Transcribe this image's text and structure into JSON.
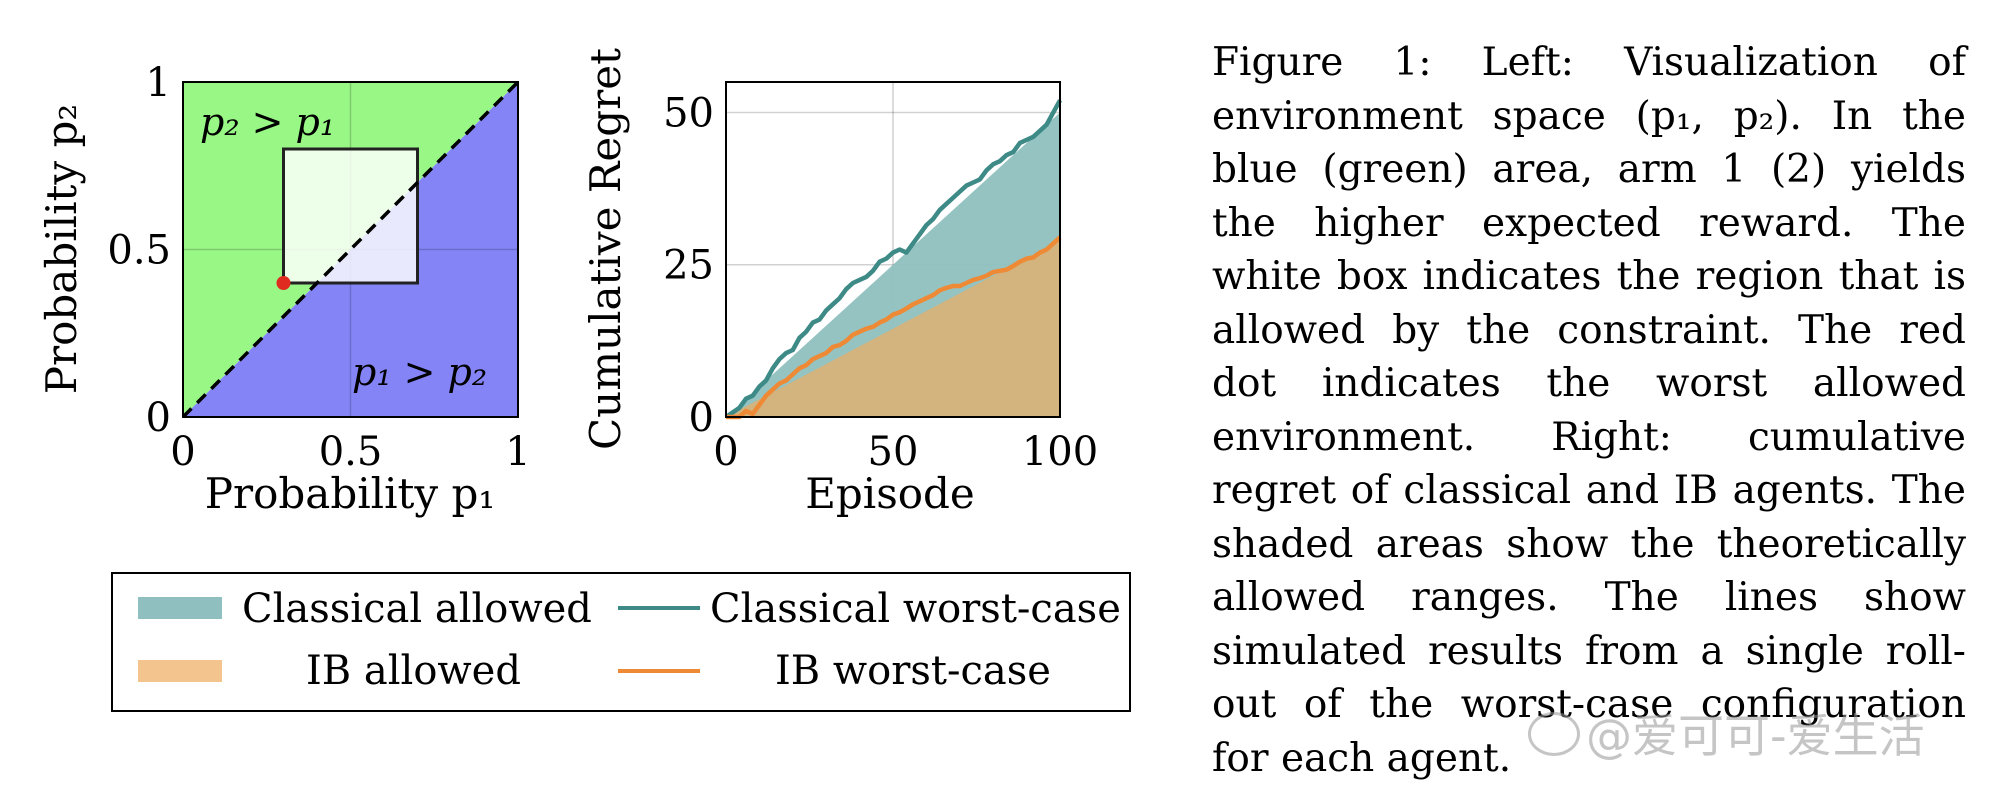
{
  "chart_data": [
    {
      "type": "area",
      "xlabel": "Probability p₁",
      "ylabel": "Probability p₂",
      "xlim": [
        0,
        1
      ],
      "ylim": [
        0,
        1
      ],
      "xticks": [
        "0",
        "0.5",
        "1"
      ],
      "yticks": [
        "0",
        "0.5",
        "1"
      ],
      "grid": true,
      "regions": [
        {
          "label": "p₂ > p₁",
          "color": "#99f785"
        },
        {
          "label": "p₁ > p₂",
          "color": "#8484f7"
        }
      ],
      "diagonal": {
        "from": [
          0,
          0
        ],
        "to": [
          1,
          1
        ],
        "style": "dashed"
      },
      "constraint_box": {
        "x": [
          0.3,
          0.7
        ],
        "y": [
          0.4,
          0.8
        ]
      },
      "red_dot": {
        "x": 0.3,
        "y": 0.4
      }
    },
    {
      "type": "line",
      "xlabel": "Episode",
      "ylabel": "Cumulative Regret",
      "xlim": [
        0,
        100
      ],
      "ylim": [
        0,
        55
      ],
      "xticks": [
        "0",
        "50",
        "100"
      ],
      "yticks": [
        "0",
        "25",
        "50"
      ],
      "grid": true,
      "areas": [
        {
          "name": "Classical allowed",
          "color": "#8fc0bf",
          "lower": [
            [
              0,
              0
            ],
            [
              100,
              0
            ]
          ],
          "upper": [
            [
              0,
              0
            ],
            [
              100,
              50
            ]
          ]
        },
        {
          "name": "IB allowed",
          "color": "#d6b27a",
          "lower": [
            [
              0,
              0
            ],
            [
              100,
              0
            ]
          ],
          "upper": [
            [
              0,
              0
            ],
            [
              100,
              29
            ]
          ]
        }
      ],
      "series": [
        {
          "name": "Classical worst-case",
          "color": "#3d8a87",
          "x": [
            0,
            4,
            6,
            8,
            10,
            12,
            14,
            16,
            18,
            20,
            22,
            24,
            26,
            28,
            30,
            32,
            34,
            36,
            38,
            40,
            42,
            44,
            46,
            48,
            50,
            52,
            54,
            56,
            58,
            60,
            62,
            64,
            66,
            68,
            70,
            72,
            74,
            76,
            78,
            80,
            82,
            84,
            86,
            88,
            90,
            92,
            94,
            96,
            98,
            100
          ],
          "y": [
            0,
            1.5,
            3,
            3.5,
            5,
            6,
            8,
            9.5,
            10.5,
            11,
            13,
            14,
            15.5,
            16,
            17.5,
            18.5,
            19.5,
            21,
            22,
            22.5,
            23,
            24,
            25.5,
            26,
            27,
            27.5,
            27,
            28.5,
            30,
            31.5,
            32.5,
            34,
            35,
            36,
            37,
            38,
            38.5,
            39,
            40.5,
            41.5,
            42,
            43,
            43.5,
            45,
            45.5,
            46,
            47,
            48,
            50,
            52
          ]
        },
        {
          "name": "IB worst-case",
          "color": "#ee8a35",
          "x": [
            0,
            4,
            6,
            8,
            10,
            12,
            14,
            16,
            18,
            20,
            22,
            24,
            26,
            28,
            30,
            32,
            34,
            36,
            38,
            40,
            42,
            44,
            46,
            48,
            50,
            52,
            54,
            56,
            58,
            60,
            62,
            64,
            66,
            68,
            70,
            72,
            74,
            76,
            78,
            80,
            82,
            84,
            86,
            88,
            90,
            92,
            94,
            96,
            98,
            100
          ],
          "y": [
            0,
            0,
            1,
            0.5,
            2,
            3.5,
            4.5,
            5.5,
            6,
            7,
            8,
            8.5,
            9.5,
            10,
            10.5,
            11.5,
            11.8,
            12.5,
            13.5,
            14,
            14.5,
            14.8,
            15.5,
            16,
            16.8,
            17.2,
            17.8,
            18.5,
            19,
            19.5,
            20,
            20.8,
            21.2,
            21.5,
            21.5,
            22,
            22.5,
            22.8,
            23.2,
            23.8,
            24,
            24.2,
            24.8,
            25.5,
            26,
            26.2,
            27,
            27.5,
            28.5,
            29.5
          ]
        }
      ],
      "legend": {
        "placement": "below",
        "entries": [
          {
            "label": "Classical allowed",
            "kind": "patch",
            "color": "#8fc0bf"
          },
          {
            "label": "Classical worst-case",
            "kind": "line",
            "color": "#3d8a87"
          },
          {
            "label": "IB allowed",
            "kind": "patch",
            "color": "#f4c48f"
          },
          {
            "label": "IB worst-case",
            "kind": "line",
            "color": "#ee8a35"
          }
        ]
      }
    }
  ],
  "caption": "Figure 1: Left: Visualization of environment space (p₁, p₂). In the blue (green) area, arm 1 (2) yields the higher expected reward. The white box indicates the region that is allowed by the constraint. The red dot indicates the worst allowed environment. Right: cumulative regret of classical and IB agents. The shaded areas show the theoretically allowed ranges. The lines show simulated results from a single roll-out of the worst-case configuration for each agent.",
  "watermark": "@爱可可-爱生活"
}
